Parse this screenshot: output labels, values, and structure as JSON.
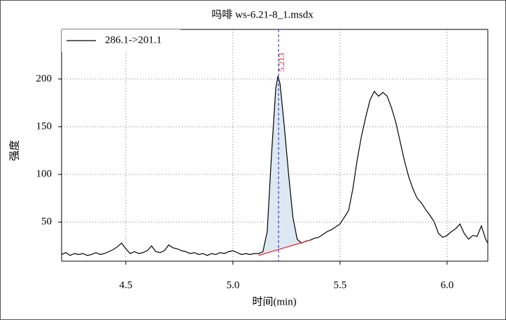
{
  "chart_data": {
    "type": "line",
    "title": "吗啡  ws-6.21-8_1.msdx",
    "xlabel": "时间(min)",
    "ylabel": "强度",
    "x": [
      4.2,
      4.22,
      4.24,
      4.26,
      4.28,
      4.3,
      4.32,
      4.34,
      4.36,
      4.38,
      4.4,
      4.42,
      4.44,
      4.46,
      4.48,
      4.5,
      4.52,
      4.54,
      4.56,
      4.58,
      4.6,
      4.62,
      4.64,
      4.66,
      4.68,
      4.7,
      4.72,
      4.74,
      4.76,
      4.78,
      4.8,
      4.82,
      4.84,
      4.86,
      4.88,
      4.9,
      4.92,
      4.94,
      4.96,
      4.98,
      5.0,
      5.02,
      5.04,
      5.06,
      5.08,
      5.1,
      5.12,
      5.14,
      5.16,
      5.18,
      5.2,
      5.21,
      5.22,
      5.24,
      5.26,
      5.28,
      5.3,
      5.32,
      5.34,
      5.36,
      5.38,
      5.4,
      5.42,
      5.44,
      5.46,
      5.48,
      5.5,
      5.52,
      5.54,
      5.56,
      5.58,
      5.6,
      5.62,
      5.64,
      5.66,
      5.68,
      5.7,
      5.72,
      5.74,
      5.76,
      5.78,
      5.8,
      5.82,
      5.84,
      5.86,
      5.88,
      5.9,
      5.92,
      5.94,
      5.96,
      5.98,
      6.0,
      6.02,
      6.04,
      6.06,
      6.08,
      6.1,
      6.12,
      6.14,
      6.16,
      6.18,
      6.19
    ],
    "series": [
      {
        "name": "286.1->201.1",
        "color": "#000000",
        "values": [
          16,
          18,
          15,
          17,
          16,
          17,
          15,
          16,
          18,
          16,
          17,
          19,
          21,
          24,
          28,
          22,
          17,
          19,
          17,
          18,
          20,
          25,
          19,
          18,
          20,
          26,
          23,
          22,
          20,
          19,
          17,
          18,
          16,
          17,
          15,
          17,
          16,
          18,
          17,
          19,
          20,
          18,
          16,
          17,
          16,
          17,
          17,
          19,
          40,
          120,
          190,
          203,
          195,
          150,
          100,
          55,
          32,
          28,
          30,
          31,
          33,
          34,
          37,
          40,
          42,
          45,
          48,
          55,
          62,
          85,
          115,
          140,
          160,
          178,
          187,
          182,
          186,
          182,
          170,
          155,
          135,
          115,
          98,
          85,
          75,
          70,
          63,
          57,
          50,
          38,
          34,
          36,
          40,
          43,
          48,
          38,
          32,
          36,
          35,
          46,
          32,
          28
        ]
      }
    ],
    "peak": {
      "retention_time": 5.213,
      "fill": "#dce8f2",
      "marker_color": "#1a1acc",
      "label_color": "#e02020"
    },
    "baseline": {
      "x": [
        5.12,
        5.36
      ],
      "y": [
        15,
        31
      ],
      "color": "#e02020"
    },
    "xlim": [
      4.2,
      6.19
    ],
    "ylim": [
      9,
      252
    ],
    "xticks": [
      4.5,
      {
        "value": 5.0,
        "label": "5.0"
      },
      5.5,
      {
        "value": 6.0,
        "label": "6.0"
      }
    ],
    "yticks": [
      50,
      100,
      150,
      200
    ],
    "grid": true
  }
}
